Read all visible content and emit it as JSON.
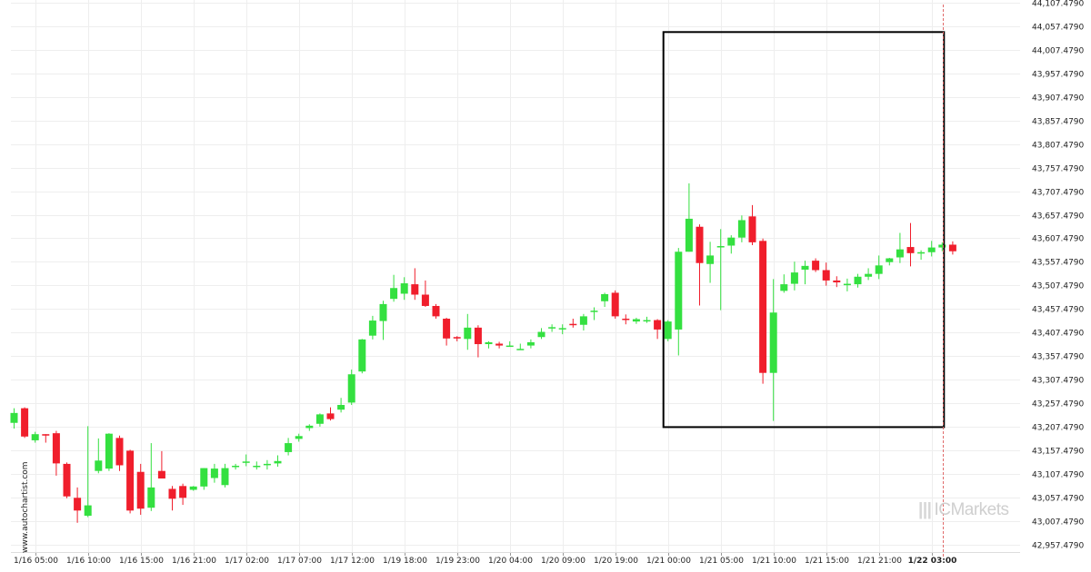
{
  "chart_data": {
    "type": "candlestick",
    "x_labels": [
      "1/16 05:00",
      "1/16 10:00",
      "1/16 15:00",
      "1/16 21:00",
      "1/17 02:00",
      "1/17 07:00",
      "1/17 12:00",
      "1/19 18:00",
      "1/19 23:00",
      "1/20 04:00",
      "1/20 09:00",
      "1/20 19:00",
      "1/21 00:00",
      "1/21 05:00",
      "1/21 10:00",
      "1/21 15:00",
      "1/21 21:00",
      "1/22 03:00"
    ],
    "x_label_candle_index": [
      2,
      7,
      12,
      17,
      22,
      27,
      32,
      37,
      42,
      47,
      52,
      57,
      62,
      67,
      72,
      77,
      82,
      87
    ],
    "y_tick_labels": [
      "44,107.4790",
      "44,057.4790",
      "44,007.4790",
      "43,957.4790",
      "43,907.4790",
      "43,857.4790",
      "43,807.4790",
      "43,757.4790",
      "43,707.4790",
      "43,657.4790",
      "43,607.4790",
      "43,557.4790",
      "43,507.4790",
      "43,457.4790",
      "43,407.4790",
      "43,357.4790",
      "43,307.4790",
      "43,257.4790",
      "43,207.4790",
      "43,157.4790",
      "43,107.4790",
      "43,057.4790",
      "43,007.4790",
      "42,957.4790"
    ],
    "y_tick_values": [
      44107.479,
      44057.479,
      44007.479,
      43957.479,
      43907.479,
      43857.479,
      43807.479,
      43757.479,
      43707.479,
      43657.479,
      43607.479,
      43557.479,
      43507.479,
      43457.479,
      43407.479,
      43357.479,
      43307.479,
      43257.479,
      43207.479,
      43157.479,
      43107.479,
      43057.479,
      43007.479,
      42957.479
    ],
    "ylim": [
      42942,
      44113
    ],
    "candle_count": 90,
    "candles": [
      [
        43216,
        43237,
        43204,
        43247
      ],
      [
        43247,
        43187,
        43184,
        43249
      ],
      [
        43179,
        43192,
        43174,
        43197
      ],
      [
        43192,
        43189,
        43174,
        43192
      ],
      [
        43194,
        43130,
        43104,
        43199
      ],
      [
        43129,
        43060,
        43056,
        43132
      ],
      [
        43057,
        43030,
        43004,
        43079
      ],
      [
        43019,
        43041,
        43016,
        43209
      ],
      [
        43114,
        43136,
        43109,
        43183
      ],
      [
        43119,
        43193,
        43114,
        43194
      ],
      [
        43184,
        43126,
        43114,
        43189
      ],
      [
        43157,
        43030,
        43024,
        43159
      ],
      [
        43112,
        43034,
        43021,
        43129
      ],
      [
        43036,
        43079,
        43029,
        43173
      ],
      [
        43114,
        43098,
        43098,
        43156
      ],
      [
        43076,
        43055,
        43030,
        43082
      ],
      [
        43082,
        43057,
        43042,
        43087
      ],
      [
        43074,
        43081,
        43072,
        43082
      ],
      [
        43081,
        43120,
        43074,
        43120
      ],
      [
        43099,
        43119,
        43089,
        43129
      ],
      [
        43084,
        43120,
        43079,
        43129
      ],
      [
        43123,
        43125,
        43117,
        43129
      ],
      [
        43133,
        43134,
        43124,
        43149
      ],
      [
        43124,
        43125,
        43117,
        43134
      ],
      [
        43129,
        43129,
        43117,
        43137
      ],
      [
        43130,
        43135,
        43123,
        43147
      ],
      [
        43154,
        43173,
        43147,
        43184
      ],
      [
        43182,
        43188,
        43176,
        43193
      ],
      [
        43205,
        43210,
        43199,
        43213
      ],
      [
        43214,
        43234,
        43208,
        43236
      ],
      [
        43236,
        43224,
        43221,
        43249
      ],
      [
        43244,
        43254,
        43238,
        43269
      ],
      [
        43259,
        43319,
        43254,
        43329
      ],
      [
        43325,
        43393,
        43321,
        43394
      ],
      [
        43401,
        43433,
        43393,
        43443
      ],
      [
        43432,
        43468,
        43392,
        43475
      ],
      [
        43479,
        43502,
        43473,
        43530
      ],
      [
        43490,
        43512,
        43477,
        43525
      ],
      [
        43510,
        43488,
        43477,
        43544
      ],
      [
        43488,
        43464,
        43462,
        43518
      ],
      [
        43464,
        43442,
        43437,
        43468
      ],
      [
        43437,
        43395,
        43380,
        43439
      ],
      [
        43398,
        43395,
        43389,
        43400
      ],
      [
        43394,
        43418,
        43371,
        43447
      ],
      [
        43418,
        43383,
        43355,
        43423
      ],
      [
        43383,
        43387,
        43374,
        43389
      ],
      [
        43384,
        43380,
        43374,
        43388
      ],
      [
        43379,
        43380,
        43378,
        43389
      ],
      [
        43373,
        43373,
        43371,
        43384
      ],
      [
        43380,
        43387,
        43374,
        43393
      ],
      [
        43398,
        43409,
        43394,
        43417
      ],
      [
        43418,
        43419,
        43409,
        43425
      ],
      [
        43416,
        43417,
        43404,
        43425
      ],
      [
        43426,
        43424,
        43418,
        43437
      ],
      [
        43424,
        43442,
        43412,
        43447
      ],
      [
        43452,
        43454,
        43434,
        43461
      ],
      [
        43474,
        43489,
        43462,
        43492
      ],
      [
        43492,
        43442,
        43437,
        43497
      ],
      [
        43437,
        43435,
        43425,
        43446
      ],
      [
        43431,
        43436,
        43426,
        43439
      ],
      [
        43432,
        43434,
        43428,
        43441
      ],
      [
        43434,
        43414,
        43394,
        43436
      ],
      [
        43394,
        43431,
        43389,
        43434
      ],
      [
        43414,
        43579,
        43359,
        43587
      ],
      [
        43579,
        43649,
        43579,
        43724
      ],
      [
        43632,
        43555,
        43465,
        43637
      ],
      [
        43553,
        43571,
        43513,
        43600
      ],
      [
        43590,
        43591,
        43455,
        43627
      ],
      [
        43592,
        43609,
        43575,
        43614
      ],
      [
        43609,
        43646,
        43599,
        43656
      ],
      [
        43654,
        43599,
        43593,
        43678
      ],
      [
        43602,
        43322,
        43299,
        43607
      ],
      [
        43322,
        43450,
        43220,
        43521
      ],
      [
        43496,
        43510,
        43492,
        43531
      ],
      [
        43511,
        43535,
        43497,
        43558
      ],
      [
        43541,
        43549,
        43510,
        43560
      ],
      [
        43560,
        43540,
        43536,
        43565
      ],
      [
        43540,
        43518,
        43507,
        43556
      ],
      [
        43518,
        43514,
        43504,
        43527
      ],
      [
        43508,
        43511,
        43495,
        43522
      ],
      [
        43510,
        43526,
        43503,
        43532
      ],
      [
        43526,
        43532,
        43519,
        43544
      ],
      [
        43532,
        43550,
        43521,
        43571
      ],
      [
        43557,
        43565,
        43550,
        43566
      ],
      [
        43567,
        43584,
        43555,
        43619
      ],
      [
        43589,
        43576,
        43548,
        43640
      ],
      [
        43576,
        43578,
        43562,
        43582
      ],
      [
        43578,
        43588,
        43569,
        43602
      ],
      [
        43588,
        43594,
        43580,
        43599
      ],
      [
        43594,
        43580,
        43573,
        43601
      ]
    ],
    "bullish_color": "#34e040",
    "bearish_color": "#f01e2c",
    "pattern_box": {
      "x_from_index": 62,
      "x_to_index": 88,
      "y_top": 44045,
      "y_bottom": 43207
    },
    "cursor_line_index": 88,
    "grid": true
  },
  "watermark": {
    "side_text": "www.autochartist.com",
    "brand_text": "ICMarkets"
  }
}
